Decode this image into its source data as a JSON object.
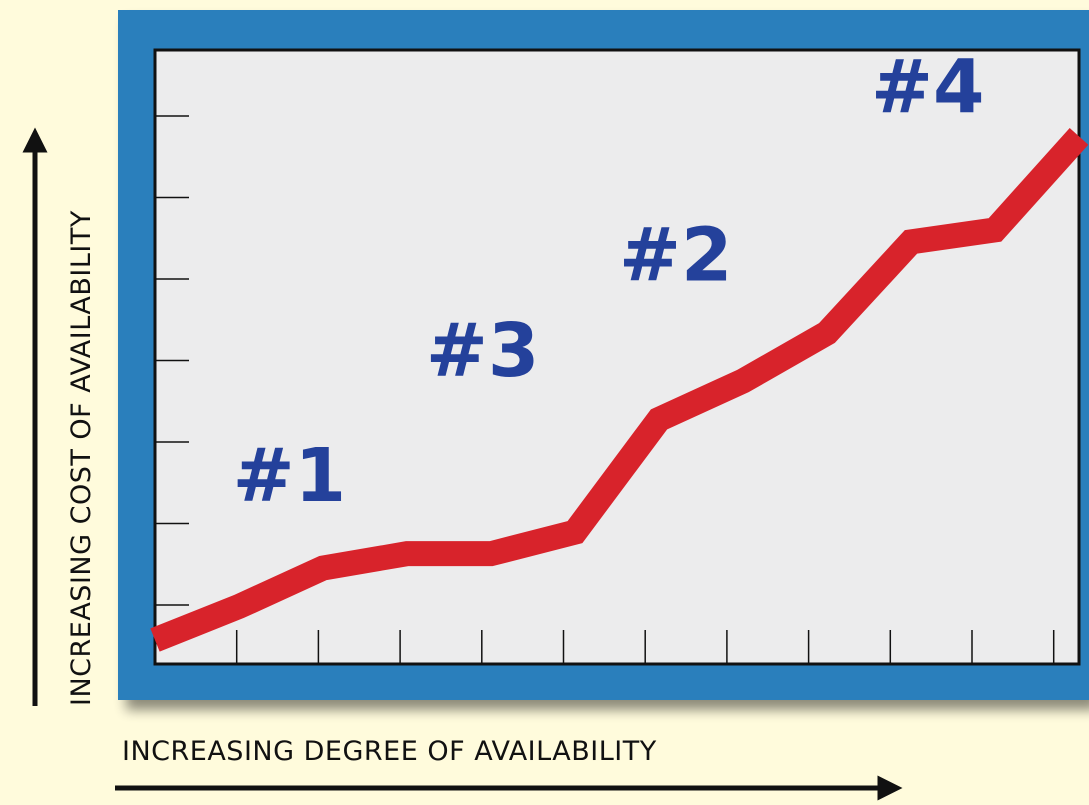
{
  "chart_data": {
    "type": "line",
    "title": "",
    "xlabel": "INCREASING DEGREE OF AVAILABILITY",
    "ylabel": "INCREASING COST OF AVAILABILITY",
    "x_ticks": 11,
    "y_ticks": 7,
    "grid": false,
    "series": [
      {
        "color": "#d8232b",
        "x": [
          0,
          1,
          2,
          3,
          4,
          5,
          6,
          7,
          8,
          9,
          10,
          11
        ],
        "y": [
          0.2,
          0.9,
          1.7,
          2.0,
          2.0,
          2.45,
          4.8,
          5.6,
          6.6,
          8.5,
          8.75,
          10.7
        ]
      }
    ],
    "xlim": [
      0,
      11
    ],
    "ylim": [
      -0.3,
      12.5
    ],
    "annotations": [
      {
        "text": "#1",
        "x": 1.6,
        "y": 3.1
      },
      {
        "text": "#3",
        "x": 3.9,
        "y": 5.7
      },
      {
        "text": "#2",
        "x": 6.2,
        "y": 7.7
      },
      {
        "text": "#4",
        "x": 9.2,
        "y": 11.2
      }
    ]
  },
  "colors": {
    "background": "#fffbdc",
    "frame": "#2b7fbc",
    "plot": "#ececed",
    "line": "#d8232b",
    "label": "#24419b"
  }
}
